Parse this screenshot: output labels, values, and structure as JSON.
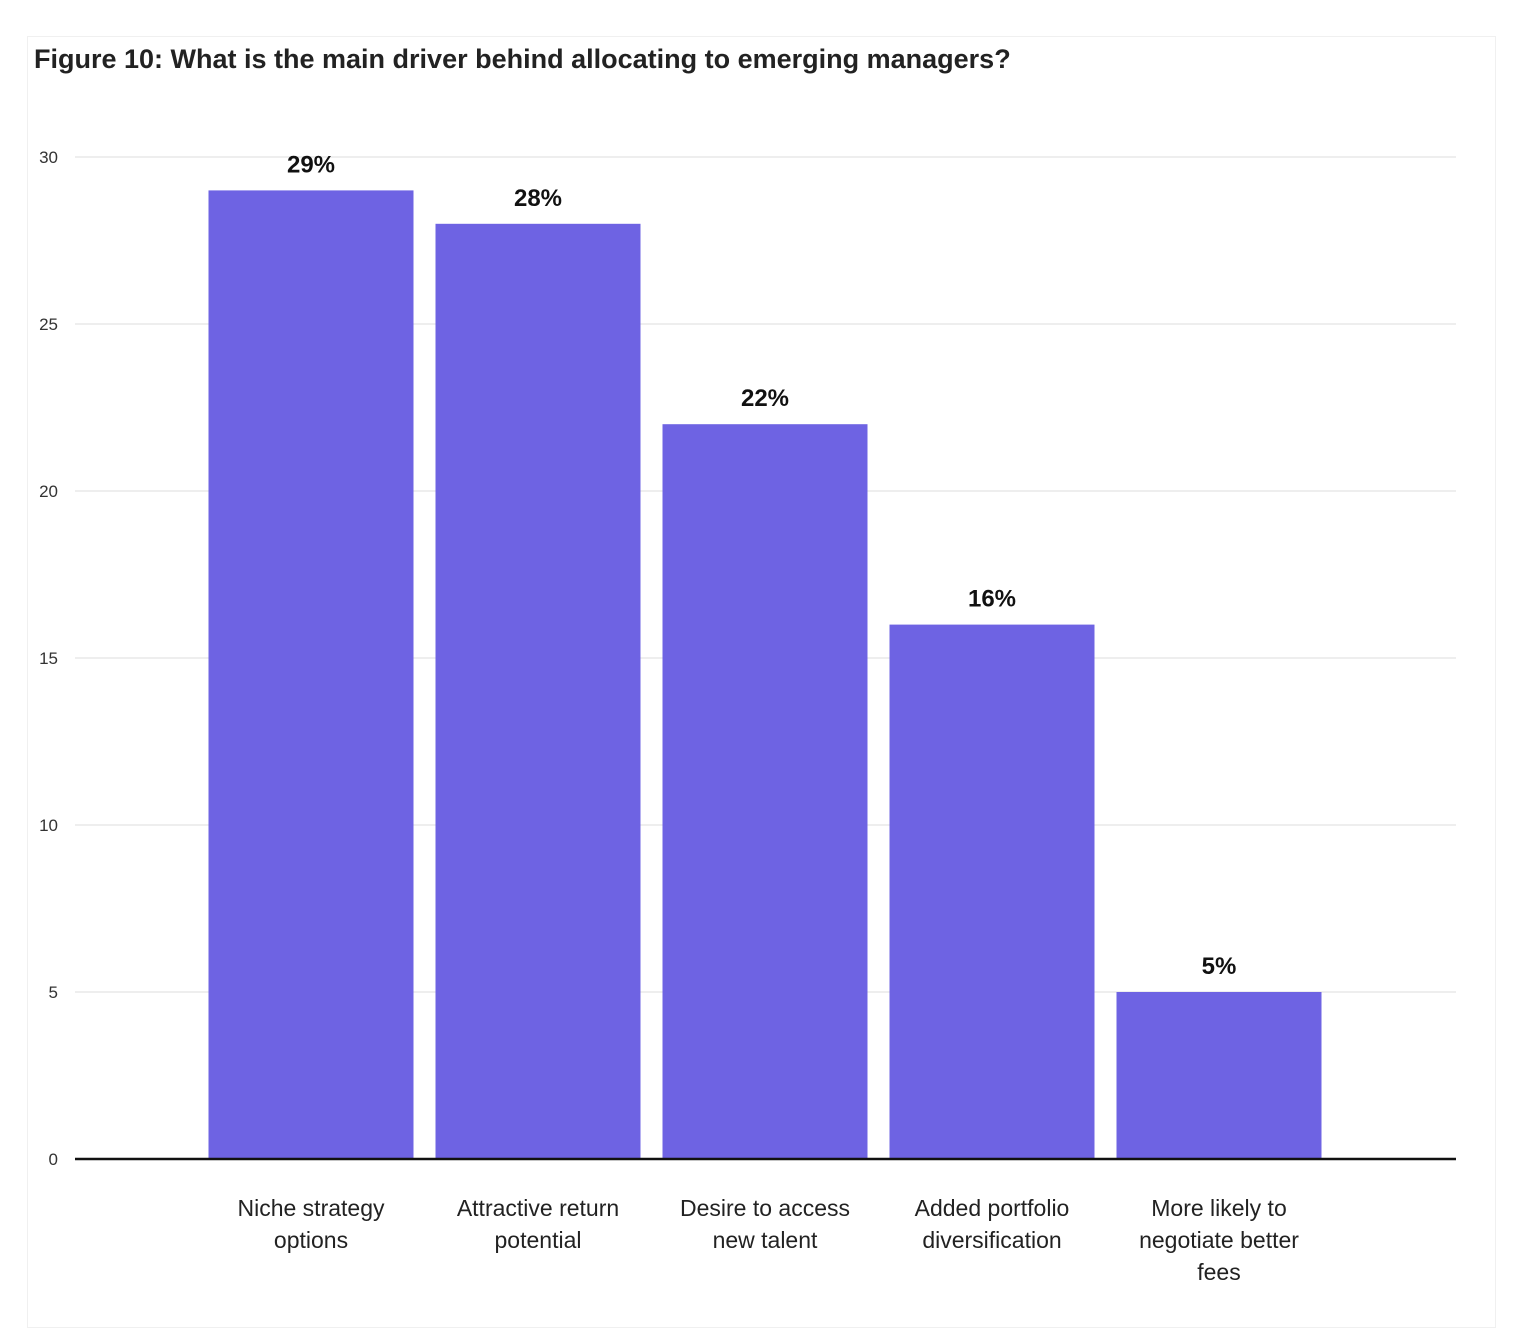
{
  "chart_data": {
    "type": "bar",
    "title": "Figure 10: What is the main driver behind allocating to emerging managers?",
    "categories": [
      [
        "Niche strategy",
        "options"
      ],
      [
        "Attractive return",
        "potential"
      ],
      [
        "Desire to access",
        "new talent"
      ],
      [
        "Added portfolio",
        "diversification"
      ],
      [
        "More likely to",
        "negotiate better",
        "fees"
      ]
    ],
    "values": [
      29,
      28,
      22,
      16,
      5
    ],
    "value_labels": [
      "29%",
      "28%",
      "22%",
      "16%",
      "5%"
    ],
    "xlabel": "",
    "ylabel": "",
    "ylim": [
      0,
      30
    ],
    "yticks": [
      "0",
      "5",
      "10",
      "15",
      "20",
      "25",
      "30"
    ],
    "grid": true,
    "bar_color": "#6e63e3"
  }
}
